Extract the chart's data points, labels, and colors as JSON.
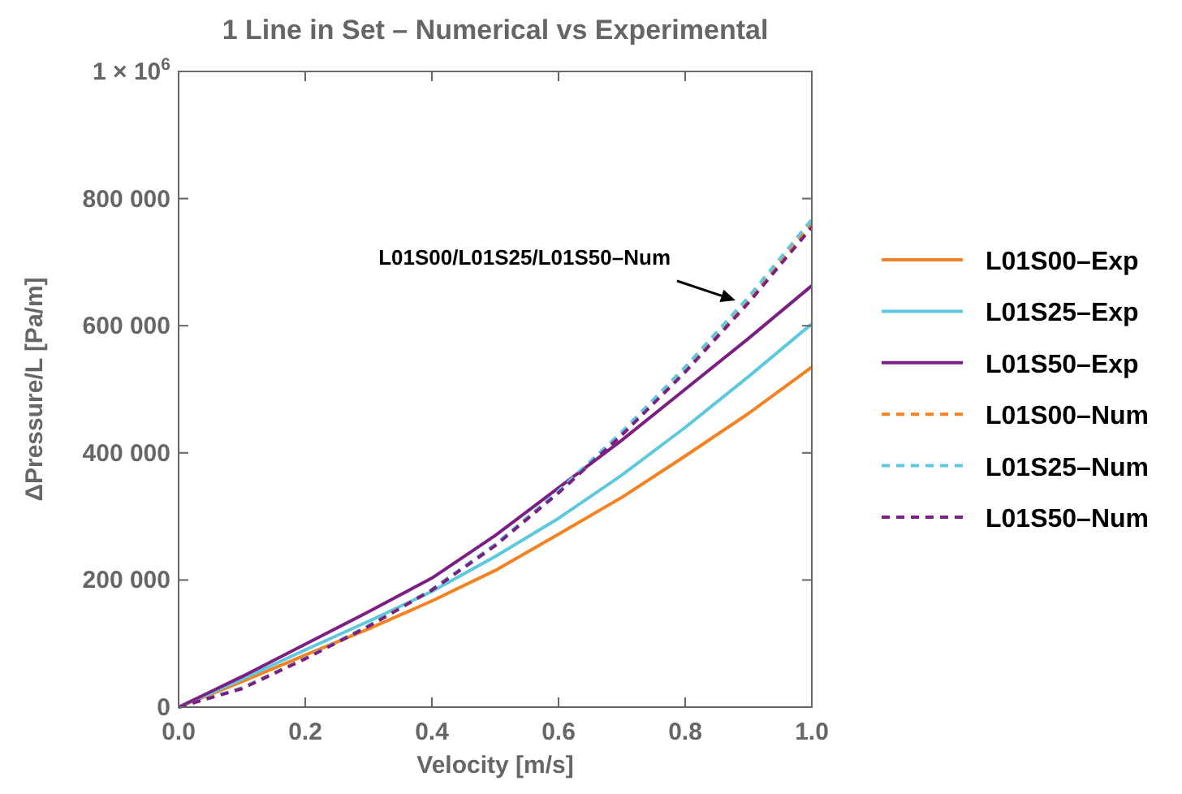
{
  "chart_data": {
    "type": "line",
    "title": "1 Line in Set – Numerical vs Experimental",
    "xlabel": "Velocity [m/s]",
    "ylabel": "ΔPressure/L [Pa/m]",
    "x": [
      0,
      0.1,
      0.2,
      0.3,
      0.4,
      0.5,
      0.6,
      0.7,
      0.8,
      0.9,
      1.0
    ],
    "series": [
      {
        "name": "L01S00–Exp",
        "color": "#f58220",
        "line_style": "solid",
        "values": [
          0,
          40000,
          82000,
          123000,
          167000,
          215000,
          272000,
          330000,
          395000,
          462000,
          535000
        ]
      },
      {
        "name": "L01S25–Exp",
        "color": "#5ec8dc",
        "line_style": "solid",
        "values": [
          0,
          44000,
          90000,
          135000,
          182000,
          237000,
          297000,
          365000,
          440000,
          520000,
          603000
        ]
      },
      {
        "name": "L01S50–Exp",
        "color": "#7b1f82",
        "line_style": "solid",
        "values": [
          0,
          48000,
          99000,
          150000,
          203000,
          270000,
          345000,
          420000,
          500000,
          580000,
          663000
        ]
      },
      {
        "name": "L01S00–Num",
        "color": "#f58220",
        "line_style": "dashed",
        "values": [
          0,
          30000,
          77000,
          128000,
          185000,
          255000,
          338000,
          430000,
          530000,
          640000,
          760000
        ]
      },
      {
        "name": "L01S25–Num",
        "color": "#5ec8dc",
        "line_style": "dashed",
        "values": [
          0,
          30000,
          77000,
          128000,
          185000,
          256000,
          340000,
          433000,
          535000,
          645000,
          767000
        ]
      },
      {
        "name": "L01S50–Num",
        "color": "#7b1f82",
        "line_style": "dashed",
        "values": [
          0,
          29000,
          76000,
          127000,
          184000,
          254000,
          337000,
          428000,
          527000,
          636000,
          755000
        ]
      }
    ],
    "xlim": [
      0,
      1
    ],
    "xticks": [
      {
        "value": 0,
        "label": "0.0"
      },
      {
        "value": 0.2,
        "label": "0.2"
      },
      {
        "value": 0.4,
        "label": "0.4"
      },
      {
        "value": 0.6,
        "label": "0.6"
      },
      {
        "value": 0.8,
        "label": "0.8"
      },
      {
        "value": 1,
        "label": "1.0"
      }
    ],
    "ylim": [
      0,
      1000000
    ],
    "yticks": [
      0,
      {
        "value": 200000,
        "label": "200 000"
      },
      {
        "value": 400000,
        "label": "400 000"
      },
      {
        "value": 600000,
        "label": "600 000"
      },
      {
        "value": 800000,
        "label": "800 000"
      },
      {
        "value": 1000000,
        "label": "1 × 10$^{6}$"
      }
    ],
    "annotations": [
      "L01S00/L01S25/L01S50–Num"
    ],
    "grid": false,
    "legend": "right",
    "marker": "none"
  }
}
